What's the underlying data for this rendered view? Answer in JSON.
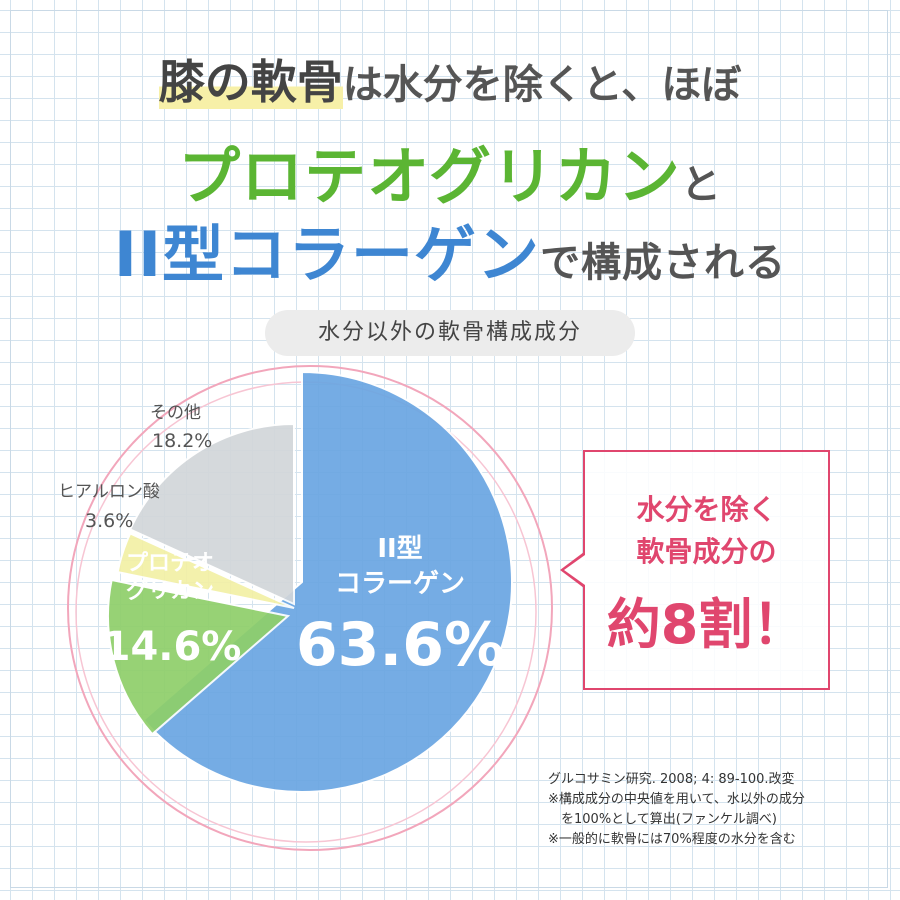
{
  "headline": {
    "line1_part1": "膝の軟骨",
    "line1_part2": "は水分を除くと、ほぼ",
    "line2_main": "プロテオグリカン",
    "line2_suffix": "と",
    "line3_main": "II型コラーゲン",
    "line3_suffix": "で構成される"
  },
  "chart_title": "水分以外の軟骨構成成分",
  "chart_data": {
    "type": "pie",
    "title": "水分以外の軟骨構成成分",
    "unit": "%",
    "slices": [
      {
        "label_lines": [
          "II型",
          "コラーゲン"
        ],
        "value": 63.6,
        "value_label": "63.6%",
        "color": "#6aa6e2"
      },
      {
        "label_lines": [
          "プロテオ",
          "グリカン"
        ],
        "value": 14.6,
        "value_label": "14.6%",
        "color": "#8fcf6a"
      },
      {
        "label_lines": [
          "ヒアルロン酸"
        ],
        "value": 3.6,
        "value_label": "3.6%",
        "color": "#f3f0a6"
      },
      {
        "label_lines": [
          "その他"
        ],
        "value": 18.2,
        "value_label": "18.2%",
        "color": "#d2d6da"
      }
    ]
  },
  "callout": {
    "line1": "水分を除く",
    "line2": "軟骨成分の",
    "line3": "約8割！",
    "border_color": "#e0466e"
  },
  "notes": [
    "グルコサミン研究. 2008; 4: 89-100.改変",
    "※構成成分の中央値を用いて、水以外の成分",
    "　を100%として算出(ファンケル調べ)",
    "※一般的に軟骨には70%程度の水分を含む"
  ],
  "colors": {
    "green": "#5bb533",
    "blue": "#3e86d2",
    "pink": "#e0466e"
  }
}
